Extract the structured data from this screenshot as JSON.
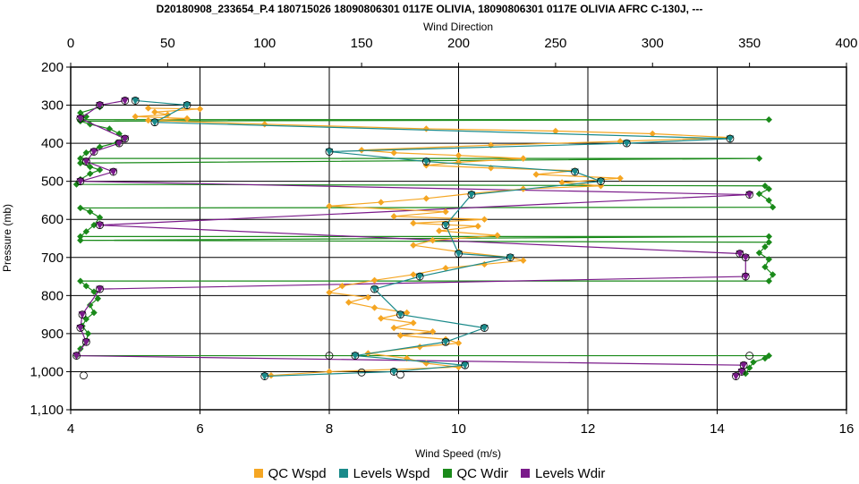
{
  "chart_data": {
    "type": "line",
    "title": "D20180908_233654_P.4 180715026 18090806301 0117E OLIVIA, 18090806301 0117E OLIVIA AFRC C-130J, ---",
    "xlabel": "Wind Speed (m/s)",
    "x2label": "Wind Direction",
    "ylabel": "Pressure (mb)",
    "xlim": [
      4,
      16
    ],
    "x2lim": [
      0,
      400
    ],
    "ylim": [
      200,
      1100
    ],
    "y_inverted": true,
    "grid": true,
    "legend_position": "bottom",
    "x_ticks": [
      "4",
      "6",
      "8",
      "10",
      "12",
      "14",
      "16"
    ],
    "x2_ticks": [
      "0",
      "50",
      "100",
      "150",
      "200",
      "250",
      "300",
      "350",
      "400"
    ],
    "y_ticks": [
      "200",
      "300",
      "400",
      "500",
      "600",
      "700",
      "800",
      "900",
      "1,000",
      "1,100"
    ],
    "series": [
      {
        "name": "QC Wspd",
        "axis": "speed",
        "color": "#f5a623",
        "points": [
          [
            5.2,
            308
          ],
          [
            6.0,
            310
          ],
          [
            5.3,
            318
          ],
          [
            5.5,
            325
          ],
          [
            5.0,
            330
          ],
          [
            5.8,
            335
          ],
          [
            5.2,
            340
          ],
          [
            7.0,
            350
          ],
          [
            9.5,
            362
          ],
          [
            11.5,
            368
          ],
          [
            13.0,
            375
          ],
          [
            14.2,
            385
          ],
          [
            12.5,
            395
          ],
          [
            10.5,
            405
          ],
          [
            8.5,
            418
          ],
          [
            9.0,
            425
          ],
          [
            10.0,
            432
          ],
          [
            11.0,
            440
          ],
          [
            10.0,
            450
          ],
          [
            9.5,
            458
          ],
          [
            10.5,
            465
          ],
          [
            11.8,
            472
          ],
          [
            11.2,
            482
          ],
          [
            12.5,
            492
          ],
          [
            11.6,
            503
          ],
          [
            12.2,
            512
          ],
          [
            11.0,
            520
          ],
          [
            10.2,
            532
          ],
          [
            9.5,
            545
          ],
          [
            8.8,
            555
          ],
          [
            8.0,
            565
          ],
          [
            9.8,
            580
          ],
          [
            9.0,
            592
          ],
          [
            10.4,
            600
          ],
          [
            9.3,
            610
          ],
          [
            10.3,
            618
          ],
          [
            9.7,
            630
          ],
          [
            10.6,
            642
          ],
          [
            9.6,
            655
          ],
          [
            9.3,
            668
          ],
          [
            10.0,
            685
          ],
          [
            10.8,
            700
          ],
          [
            11.0,
            708
          ],
          [
            10.4,
            718
          ],
          [
            9.8,
            728
          ],
          [
            9.3,
            745
          ],
          [
            8.7,
            760
          ],
          [
            8.2,
            775
          ],
          [
            8.0,
            792
          ],
          [
            8.6,
            805
          ],
          [
            8.3,
            818
          ],
          [
            8.7,
            832
          ],
          [
            9.2,
            845
          ],
          [
            8.8,
            860
          ],
          [
            9.3,
            872
          ],
          [
            9.0,
            885
          ],
          [
            9.6,
            895
          ],
          [
            9.1,
            905
          ],
          [
            9.8,
            915
          ],
          [
            10.0,
            925
          ],
          [
            9.4,
            935
          ],
          [
            8.6,
            952
          ],
          [
            9.2,
            965
          ],
          [
            9.5,
            978
          ],
          [
            10.0,
            988
          ],
          [
            8.0,
            1000
          ],
          [
            7.1,
            1010
          ]
        ]
      },
      {
        "name": "Levels Wspd",
        "axis": "speed",
        "color": "#1a8a8a",
        "points": [
          [
            5.0,
            288
          ],
          [
            5.8,
            300
          ],
          [
            5.3,
            345
          ],
          [
            14.2,
            388
          ],
          [
            12.6,
            400
          ],
          [
            8.0,
            422
          ],
          [
            9.5,
            448
          ],
          [
            11.8,
            475
          ],
          [
            12.2,
            500
          ],
          [
            10.2,
            535
          ],
          [
            9.8,
            615
          ],
          [
            10.0,
            690
          ],
          [
            10.8,
            700
          ],
          [
            9.4,
            750
          ],
          [
            8.7,
            783
          ],
          [
            9.1,
            850
          ],
          [
            10.4,
            885
          ],
          [
            9.8,
            922
          ],
          [
            8.4,
            958
          ],
          [
            10.1,
            983
          ],
          [
            9.0,
            1000
          ],
          [
            7.0,
            1012
          ]
        ]
      },
      {
        "name": "QC Wdir",
        "axis": "direction",
        "color": "#1a8a1a",
        "points": [
          [
            15,
            305
          ],
          [
            5,
            320
          ],
          [
            8,
            330
          ],
          [
            5,
            338
          ],
          [
            360,
            338
          ],
          [
            5,
            342
          ],
          [
            10,
            350
          ],
          [
            20,
            362
          ],
          [
            25,
            375
          ],
          [
            28,
            388
          ],
          [
            24,
            398
          ],
          [
            15,
            410
          ],
          [
            8,
            425
          ],
          [
            5,
            440
          ],
          [
            355,
            440
          ],
          [
            5,
            452
          ],
          [
            10,
            462
          ],
          [
            15,
            470
          ],
          [
            10,
            480
          ],
          [
            5,
            495
          ],
          [
            3,
            508
          ],
          [
            358,
            512
          ],
          [
            360,
            520
          ],
          [
            355,
            533
          ],
          [
            360,
            550
          ],
          [
            362,
            568
          ],
          [
            5,
            570
          ],
          [
            10,
            580
          ],
          [
            15,
            595
          ],
          [
            12,
            615
          ],
          [
            8,
            632
          ],
          [
            5,
            645
          ],
          [
            360,
            645
          ],
          [
            5,
            655
          ],
          [
            360,
            660
          ],
          [
            358,
            672
          ],
          [
            355,
            688
          ],
          [
            360,
            705
          ],
          [
            358,
            725
          ],
          [
            362,
            745
          ],
          [
            360,
            762
          ],
          [
            5,
            762
          ],
          [
            8,
            775
          ],
          [
            12,
            790
          ],
          [
            14,
            808
          ],
          [
            10,
            825
          ],
          [
            12,
            845
          ],
          [
            8,
            862
          ],
          [
            6,
            880
          ],
          [
            9,
            900
          ],
          [
            8,
            920
          ],
          [
            5,
            940
          ],
          [
            3,
            958
          ],
          [
            360,
            958
          ],
          [
            358,
            965
          ],
          [
            352,
            975
          ],
          [
            350,
            990
          ],
          [
            348,
            1005
          ]
        ]
      },
      {
        "name": "Levels Wdir",
        "axis": "direction",
        "color": "#7a1a8a",
        "points": [
          [
            28,
            288
          ],
          [
            15,
            300
          ],
          [
            5,
            335
          ],
          [
            28,
            388
          ],
          [
            25,
            400
          ],
          [
            12,
            422
          ],
          [
            8,
            448
          ],
          [
            22,
            475
          ],
          [
            5,
            500
          ],
          [
            350,
            535
          ],
          [
            15,
            615
          ],
          [
            345,
            690
          ],
          [
            348,
            700
          ],
          [
            348,
            750
          ],
          [
            15,
            783
          ],
          [
            6,
            850
          ],
          [
            5,
            885
          ],
          [
            8,
            922
          ],
          [
            3,
            958
          ],
          [
            347,
            983
          ],
          [
            346,
            1000
          ],
          [
            343,
            1012
          ]
        ]
      }
    ],
    "circles_speed": [
      [
        8.0,
        958
      ],
      [
        14.5,
        958
      ],
      [
        4.2,
        1010
      ],
      [
        8.5,
        1002
      ],
      [
        9.1,
        1008
      ]
    ]
  }
}
